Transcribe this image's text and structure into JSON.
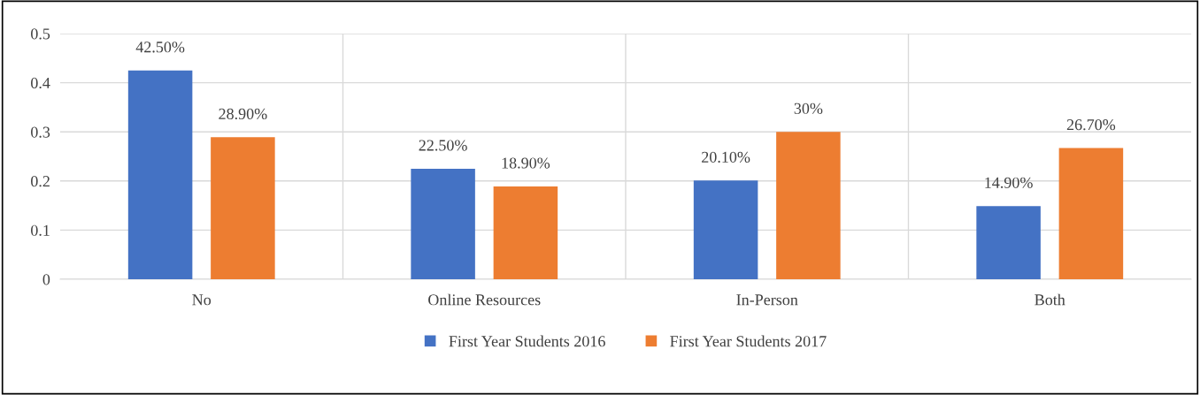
{
  "chart_data": {
    "type": "bar",
    "categories": [
      "No",
      "Online Resources",
      "In-Person",
      "Both"
    ],
    "series": [
      {
        "name": "First Year Students 2016",
        "color": "#4472c4",
        "values": [
          0.425,
          0.225,
          0.201,
          0.149
        ],
        "value_labels": [
          "42.50%",
          "22.50%",
          "20.10%",
          "14.90%"
        ]
      },
      {
        "name": "First Year Students 2017",
        "color": "#ed7d31",
        "values": [
          0.289,
          0.189,
          0.3,
          0.267
        ],
        "value_labels": [
          "28.90%",
          "18.90%",
          "30%",
          "26.70%"
        ]
      }
    ],
    "ylim": [
      0,
      0.5
    ],
    "yticks": [
      {
        "value": 0,
        "label": "0"
      },
      0.1,
      0.2,
      0.3,
      0.4,
      0.5
    ],
    "grid": true,
    "legend": "bottom"
  }
}
